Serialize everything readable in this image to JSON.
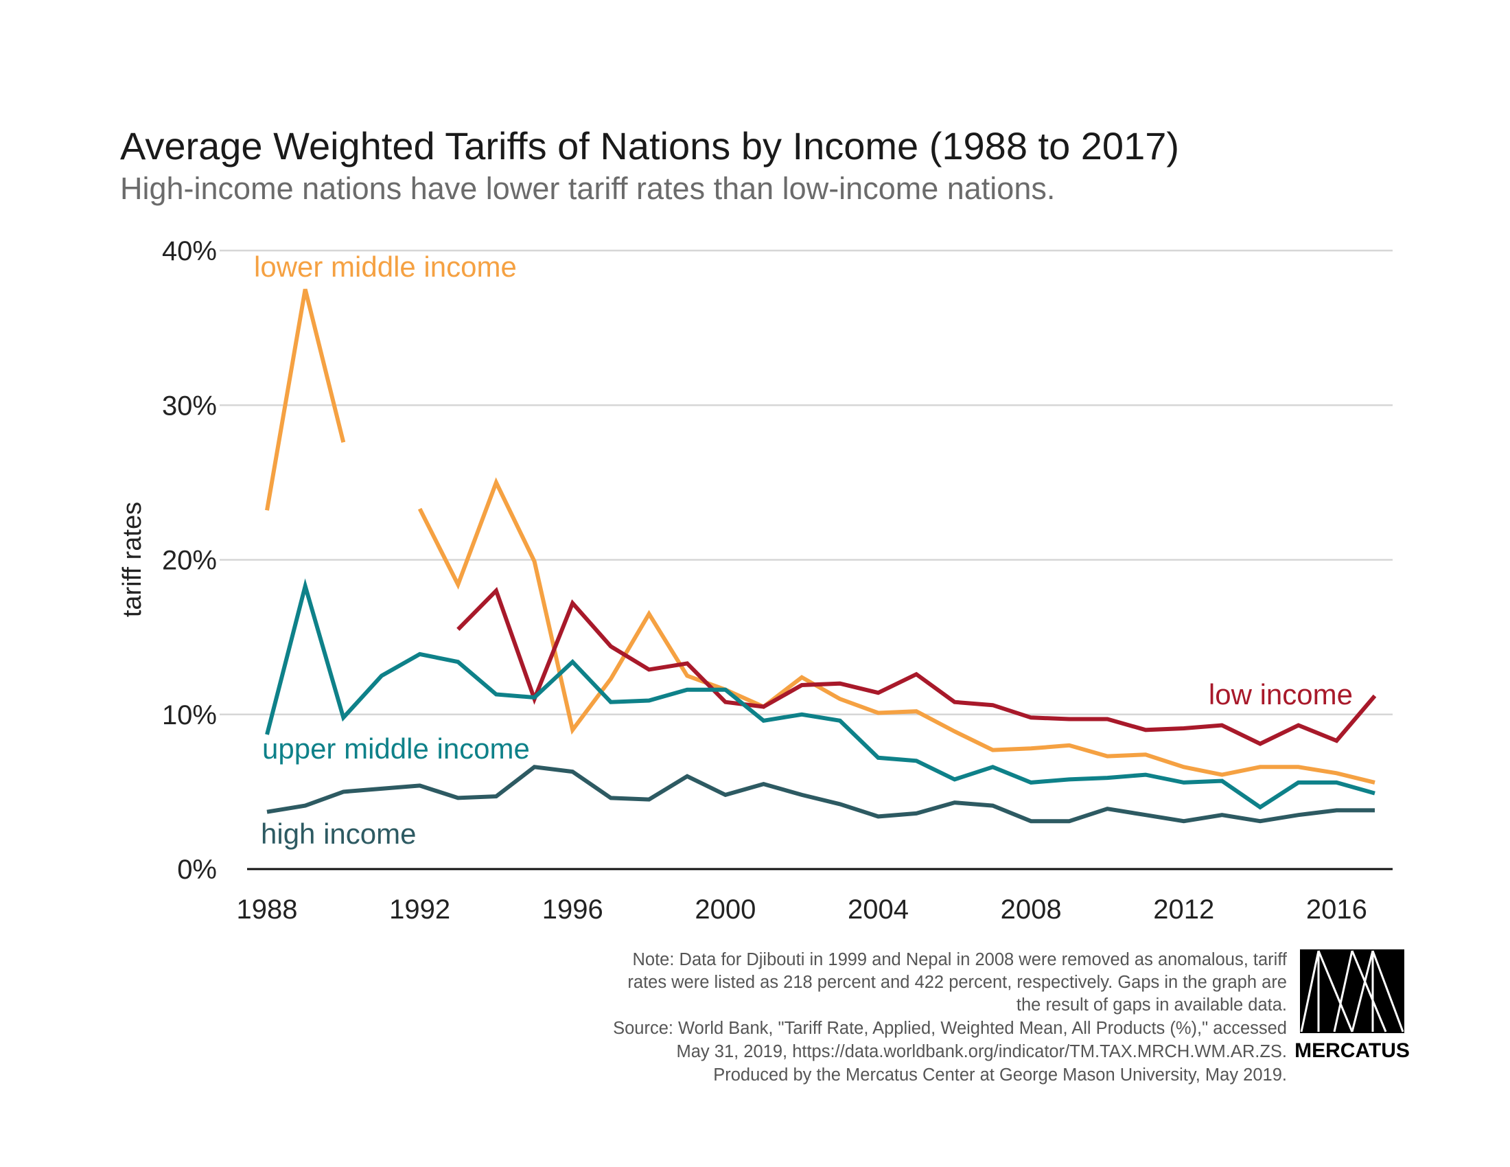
{
  "title": "Average Weighted Tariffs of Nations by Income (1988 to 2017)",
  "subtitle": "High-income nations have lower tariff rates than low-income nations.",
  "notes": [
    "Note: Data for Djibouti in 1999 and Nepal in 2008 were removed as anomalous, tariff",
    "rates were listed as 218 percent and 422 percent, respectively. Gaps in the graph are",
    "the result of gaps in available data.",
    "Source: World Bank, \"Tariff Rate, Applied, Weighted Mean, All Products (%),\" accessed",
    "May 31, 2019, https://data.worldbank.org/indicator/TM.TAX.MRCH.WM.AR.ZS.",
    "Produced by the Mercatus Center at George Mason University, May 2019."
  ],
  "logo": {
    "text": "MERCATUS"
  },
  "chart_data": {
    "type": "line",
    "ylabel": "tariff rates",
    "xlabel": "",
    "xlim": [
      1988,
      2017
    ],
    "ylim": [
      0,
      40
    ],
    "x_ticks": [
      "1988",
      "1992",
      "1996",
      "2000",
      "2004",
      "2008",
      "2012",
      "2016"
    ],
    "y_ticks": [
      "0%",
      "10%",
      "20%",
      "30%",
      "40%"
    ],
    "grid": true,
    "legend": "inline labels",
    "x": [
      1988,
      1989,
      1990,
      1991,
      1992,
      1993,
      1994,
      1995,
      1996,
      1997,
      1998,
      1999,
      2000,
      2001,
      2002,
      2003,
      2004,
      2005,
      2006,
      2007,
      2008,
      2009,
      2010,
      2011,
      2012,
      2013,
      2014,
      2015,
      2016,
      2017
    ],
    "series": [
      {
        "name": "lower middle income",
        "color": "#f5a142",
        "values": [
          23.2,
          37.5,
          27.6,
          null,
          23.3,
          18.4,
          25.0,
          19.9,
          9.0,
          12.3,
          16.5,
          12.5,
          11.6,
          10.5,
          12.4,
          11.0,
          10.1,
          10.2,
          8.9,
          7.7,
          7.8,
          8.0,
          7.3,
          7.4,
          6.6,
          6.1,
          6.6,
          6.6,
          6.2,
          5.6
        ]
      },
      {
        "name": "low income",
        "color": "#a8192a",
        "values": [
          null,
          null,
          null,
          null,
          null,
          15.5,
          18.0,
          11.0,
          17.2,
          14.4,
          12.9,
          13.3,
          10.8,
          10.5,
          11.9,
          12.0,
          11.4,
          12.6,
          10.8,
          10.6,
          9.8,
          9.7,
          9.7,
          9.0,
          9.1,
          9.3,
          8.1,
          9.3,
          8.3,
          11.2
        ]
      },
      {
        "name": "upper middle income",
        "color": "#0e8189",
        "values": [
          8.7,
          18.3,
          9.8,
          12.5,
          13.9,
          13.4,
          11.3,
          11.1,
          13.4,
          10.8,
          10.9,
          11.6,
          11.6,
          9.6,
          10.0,
          9.6,
          7.2,
          7.0,
          5.8,
          6.6,
          5.6,
          5.8,
          5.9,
          6.1,
          5.6,
          5.7,
          4.0,
          5.6,
          5.6,
          4.9
        ]
      },
      {
        "name": "high income",
        "color": "#2d5a62",
        "values": [
          3.7,
          4.1,
          5.0,
          5.2,
          5.4,
          4.6,
          4.7,
          6.6,
          6.3,
          4.6,
          4.5,
          6.0,
          4.8,
          5.5,
          4.8,
          4.2,
          3.4,
          3.6,
          4.3,
          4.1,
          3.1,
          3.1,
          3.9,
          3.5,
          3.1,
          3.5,
          3.1,
          3.5,
          3.8,
          3.8
        ]
      }
    ]
  }
}
